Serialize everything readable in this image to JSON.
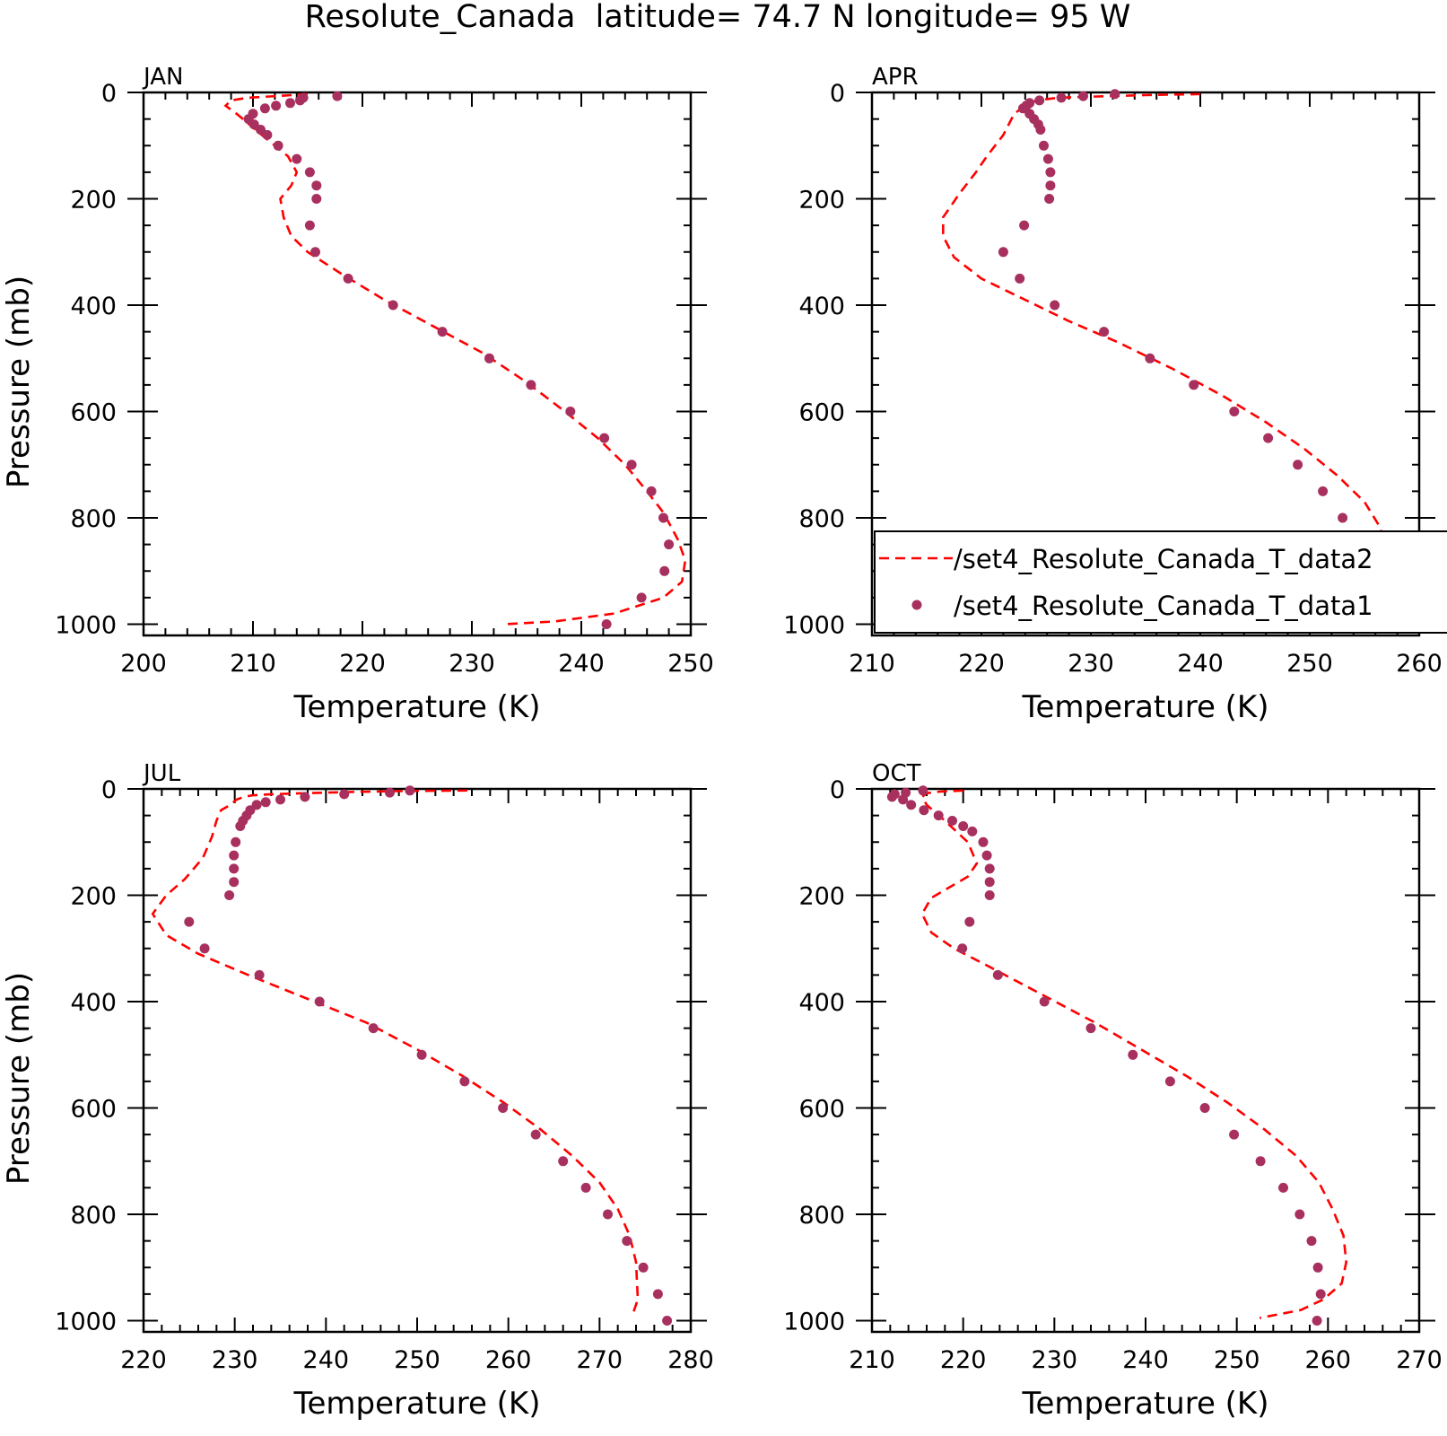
{
  "figure": {
    "title": "Resolute_Canada  latitude= 74.7 N longitude= 95 W"
  },
  "colors": {
    "model_line": "#ff0000",
    "obs_points": "#a8305f",
    "axis": "#000000"
  },
  "legend": {
    "entries": [
      {
        "label": "/set4_Resolute_Canada_T_data2",
        "style": "dashed-line"
      },
      {
        "label": "/set4_Resolute_Canada_T_data1",
        "style": "marker"
      }
    ],
    "placement": "inside APR panel, lower area, clipped at right edge"
  },
  "chart_data": [
    {
      "type": "line",
      "panel_label": "JAN",
      "xlabel": "Temperature (K)",
      "ylabel": "Pressure (mb)",
      "xlim": [
        200,
        250
      ],
      "ylim": [
        0,
        1025
      ],
      "y_inverted": true,
      "x_ticks": [
        200,
        210,
        220,
        230,
        240,
        250
      ],
      "y_ticks": [
        0,
        200,
        400,
        600,
        800,
        1000
      ],
      "grid": false,
      "series": [
        {
          "name": "/set4_Resolute_Canada_T_data2",
          "style": "dashed-line",
          "x": [
            215,
            212.8,
            209.5,
            208,
            207.5,
            208.5,
            210.8,
            213.2,
            214,
            213.5,
            212.5,
            212.8,
            213.5,
            215,
            218,
            222,
            226.5,
            231,
            235,
            238.5,
            241.5,
            244,
            246,
            247.5,
            248.8,
            249.5,
            249.2,
            247.5,
            243,
            237.5,
            233
          ],
          "y": [
            3,
            6,
            10,
            15,
            25,
            40,
            80,
            120,
            150,
            175,
            200,
            235,
            270,
            300,
            340,
            390,
            440,
            490,
            545,
            600,
            650,
            700,
            750,
            790,
            840,
            880,
            920,
            950,
            980,
            995,
            1000
          ]
        },
        {
          "name": "/set4_Resolute_Canada_T_data1",
          "style": "marker",
          "x": [
            217.7,
            214.6,
            214.3,
            213.4,
            212.1,
            211.1,
            210,
            209.6,
            210.1,
            210.7,
            211.3,
            212.3,
            214,
            215.2,
            215.8,
            215.8,
            215.2,
            215.7,
            218.7,
            222.8,
            227.3,
            231.6,
            235.4,
            239,
            242.1,
            244.6,
            246.4,
            247.5,
            248,
            247.6,
            245.5,
            242.3
          ],
          "y": [
            7,
            10,
            15,
            20,
            25,
            30,
            40,
            50,
            60,
            70,
            80,
            100,
            125,
            150,
            175,
            200,
            250,
            300,
            350,
            400,
            450,
            500,
            550,
            600,
            650,
            700,
            750,
            800,
            850,
            900,
            950,
            1000
          ]
        }
      ]
    },
    {
      "type": "line",
      "panel_label": "APR",
      "xlabel": "Temperature (K)",
      "ylabel": "",
      "xlim": [
        210,
        260
      ],
      "ylim": [
        0,
        1025
      ],
      "y_inverted": true,
      "x_ticks": [
        210,
        220,
        230,
        240,
        250,
        260
      ],
      "y_ticks": [
        0,
        200,
        400,
        600,
        800,
        1000
      ],
      "grid": false,
      "series": [
        {
          "name": "/set4_Resolute_Canada_T_data2",
          "style": "dashed-line",
          "x": [
            240,
            235,
            230,
            227,
            225,
            224,
            223,
            222,
            220.5,
            219.5,
            218,
            216.5,
            216.5,
            217.5,
            220,
            224,
            228,
            232.5,
            237.5,
            242,
            246,
            249.5,
            252.5,
            255,
            256.5,
            256.8,
            256.5,
            255,
            253,
            250,
            246.5
          ],
          "y": [
            3,
            5,
            8,
            10,
            15,
            25,
            40,
            80,
            120,
            150,
            190,
            235,
            270,
            310,
            350,
            390,
            430,
            470,
            520,
            570,
            620,
            670,
            720,
            770,
            820,
            870,
            920,
            955,
            980,
            995,
            1005
          ]
        },
        {
          "name": "/set4_Resolute_Canada_T_data1",
          "style": "marker",
          "x": [
            232.2,
            229.3,
            227.3,
            225.3,
            224.4,
            224.1,
            223.8,
            224.4,
            224.8,
            225.2,
            225.4,
            225.7,
            226.1,
            226.3,
            226.3,
            226.2,
            223.9,
            222,
            223.5,
            226.7,
            231.2,
            235.4,
            239.4,
            243.1,
            246.2,
            248.9,
            251.2,
            253,
            254.1,
            254.3,
            253.7,
            251.1
          ],
          "y": [
            3,
            7,
            10,
            15,
            20,
            25,
            30,
            40,
            50,
            60,
            70,
            100,
            125,
            150,
            175,
            200,
            250,
            300,
            350,
            400,
            450,
            500,
            550,
            600,
            650,
            700,
            750,
            800,
            850,
            900,
            950,
            1000
          ]
        }
      ]
    },
    {
      "type": "line",
      "panel_label": "JUL",
      "xlabel": "Temperature (K)",
      "ylabel": "Pressure (mb)",
      "xlim": [
        220,
        280
      ],
      "ylim": [
        0,
        1025
      ],
      "y_inverted": true,
      "x_ticks": [
        220,
        230,
        240,
        250,
        260,
        270,
        280
      ],
      "y_ticks": [
        0,
        200,
        400,
        600,
        800,
        1000
      ],
      "grid": false,
      "series": [
        {
          "name": "/set4_Resolute_Canada_T_data2",
          "style": "dashed-line",
          "x": [
            255.5,
            248,
            242,
            238,
            234,
            232,
            231,
            230.2,
            229.5,
            228.5,
            228,
            227.5,
            226.5,
            224.5,
            222.5,
            221,
            222.5,
            226,
            231.5,
            238,
            244.5,
            250,
            255,
            259.5,
            263.5,
            267,
            270,
            272,
            273.3,
            274,
            274.2,
            273.6
          ],
          "y": [
            3,
            4,
            6,
            8,
            10,
            12,
            15,
            20,
            30,
            40,
            60,
            90,
            130,
            170,
            200,
            235,
            275,
            310,
            350,
            395,
            440,
            490,
            540,
            590,
            640,
            690,
            740,
            790,
            840,
            890,
            960,
            990
          ]
        },
        {
          "name": "/set4_Resolute_Canada_T_data1",
          "style": "marker",
          "x": [
            249.2,
            247,
            242,
            237.7,
            235,
            233.4,
            232.4,
            231.7,
            231.3,
            230.9,
            230.6,
            230.1,
            229.9,
            229.9,
            229.9,
            229.4,
            225,
            226.7,
            232.7,
            239.3,
            245.2,
            250.5,
            255.2,
            259.4,
            263,
            266,
            268.5,
            270.9,
            273,
            274.8,
            276.4,
            277.4
          ],
          "y": [
            3,
            7,
            10,
            15,
            20,
            25,
            30,
            40,
            50,
            60,
            70,
            100,
            125,
            150,
            175,
            200,
            250,
            300,
            350,
            400,
            450,
            500,
            550,
            600,
            650,
            700,
            750,
            800,
            850,
            900,
            950,
            1000
          ]
        }
      ]
    },
    {
      "type": "line",
      "panel_label": "OCT",
      "xlabel": "Temperature (K)",
      "ylabel": "",
      "xlim": [
        210,
        270
      ],
      "ylim": [
        0,
        1025
      ],
      "y_inverted": true,
      "x_ticks": [
        210,
        220,
        230,
        240,
        250,
        260,
        270
      ],
      "y_ticks": [
        0,
        200,
        400,
        600,
        800,
        1000
      ],
      "grid": false,
      "series": [
        {
          "name": "/set4_Resolute_Canada_T_data2",
          "style": "dashed-line",
          "x": [
            220,
            217.5,
            216,
            215.5,
            216,
            218,
            220.5,
            221.5,
            220.5,
            218.5,
            216.5,
            215.5,
            216.5,
            219,
            223.5,
            229,
            234.5,
            239.5,
            244.5,
            249,
            253,
            256.5,
            259,
            260.5,
            261.7,
            262,
            261.5,
            259.5,
            257,
            252.5
          ],
          "y": [
            3,
            5,
            8,
            15,
            30,
            60,
            100,
            140,
            165,
            185,
            205,
            235,
            270,
            300,
            340,
            390,
            440,
            490,
            540,
            590,
            640,
            690,
            740,
            790,
            840,
            890,
            930,
            960,
            980,
            995
          ]
        },
        {
          "name": "/set4_Resolute_Canada_T_data1",
          "style": "marker",
          "x": [
            215.6,
            213.7,
            212.5,
            212.2,
            213.4,
            214.3,
            215.7,
            217.3,
            218.8,
            220,
            221,
            222.2,
            222.6,
            222.9,
            222.9,
            222.9,
            220.7,
            219.9,
            223.8,
            228.9,
            234,
            238.6,
            242.7,
            246.5,
            249.7,
            252.6,
            255.1,
            256.9,
            258.2,
            258.9,
            259.2,
            258.8
          ],
          "y": [
            3,
            7,
            10,
            15,
            20,
            30,
            40,
            50,
            60,
            70,
            80,
            100,
            125,
            150,
            175,
            200,
            250,
            300,
            350,
            400,
            450,
            500,
            550,
            600,
            650,
            700,
            750,
            800,
            850,
            900,
            950,
            1000
          ]
        }
      ]
    }
  ]
}
